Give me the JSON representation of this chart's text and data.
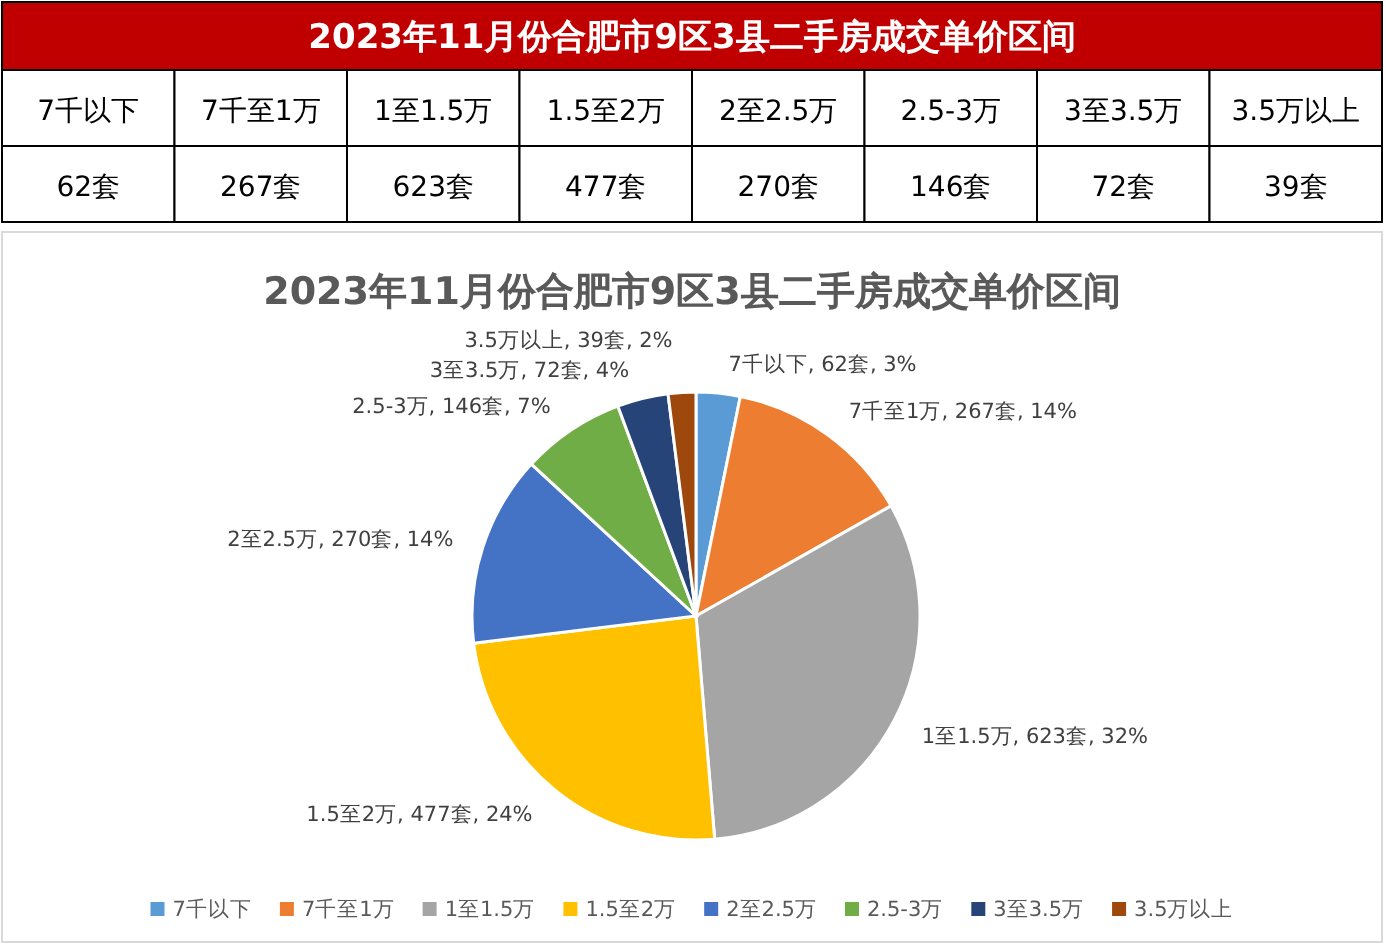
{
  "chart_data": [
    {
      "type": "other",
      "title": "2023年11月份合肥市9区3县二手房成交单价区间",
      "categories": [
        "7千以下",
        "7千至1万",
        "1至1.5万",
        "1.5至2万",
        "2至2.5万",
        "2.5-3万",
        "3至3.5万",
        "3.5万以上"
      ],
      "value_labels": [
        "62套",
        "267套",
        "623套",
        "477套",
        "270套",
        "146套",
        "72套",
        "39套"
      ]
    },
    {
      "type": "pie",
      "title": "2023年11月份合肥市9区3县二手房成交单价区间",
      "categories": [
        "7千以下",
        "7千至1万",
        "1至1.5万",
        "1.5至2万",
        "2至2.5万",
        "2.5-3万",
        "3至3.5万",
        "3.5万以上"
      ],
      "values": [
        62,
        267,
        623,
        477,
        270,
        146,
        72,
        39
      ],
      "value_labels": [
        "7千以下, 62套, 3%",
        "7千至1万, 267套, 14%",
        "1至1.5万, 623套, 32%",
        "1.5至2万, 477套, 24%",
        "2至2.5万, 270套, 14%",
        "2.5-3万, 146套, 7%",
        "3至3.5万, 72套, 4%",
        "3.5万以上, 39套, 2%"
      ],
      "colors": [
        "#5b9bd5",
        "#ed7d31",
        "#a5a5a5",
        "#ffc000",
        "#4472c4",
        "#70ad47",
        "#264478",
        "#9e480e"
      ],
      "legend": "bottom"
    }
  ]
}
